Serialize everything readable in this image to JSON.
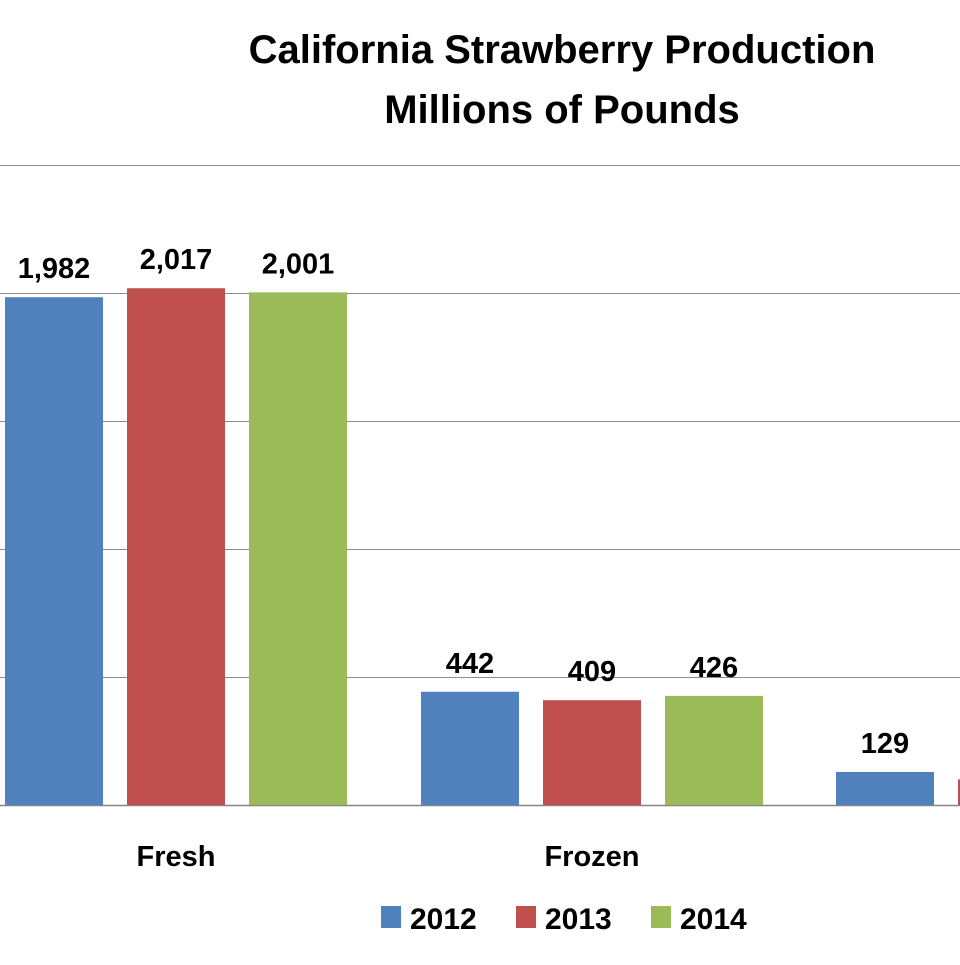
{
  "chart_data": {
    "type": "bar",
    "title_lines": [
      "California Strawberry Production",
      "Millions of Pounds"
    ],
    "categories": [
      "Fresh",
      "Frozen",
      ""
    ],
    "series": [
      {
        "name": "2012",
        "color": "#4F81BD",
        "values": [
          1982,
          442,
          129
        ],
        "labels": [
          "1,982",
          "442",
          "129"
        ]
      },
      {
        "name": "2013",
        "color": "#C0504D",
        "values": [
          2017,
          409,
          100
        ],
        "labels": [
          "2,017",
          "409",
          ""
        ]
      },
      {
        "name": "2014",
        "color": "#9BBB59",
        "values": [
          2001,
          426,
          null
        ],
        "labels": [
          "2,001",
          "426",
          ""
        ]
      }
    ],
    "ylim": [
      0,
      2500
    ],
    "grid": true,
    "legend_position": "bottom"
  }
}
